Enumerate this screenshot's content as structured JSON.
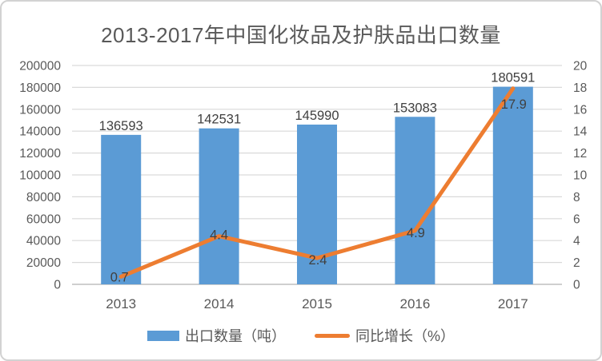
{
  "title": "2013-2017年中国化妆品及护肤品出口数量",
  "chart_data": {
    "type": "combo",
    "categories": [
      "2013",
      "2014",
      "2015",
      "2016",
      "2017"
    ],
    "series": [
      {
        "name": "出口数量（吨）",
        "type": "bar",
        "axis": "left",
        "color": "#5B9BD5",
        "values": [
          136593,
          142531,
          145990,
          153083,
          180591
        ]
      },
      {
        "name": "同比增长（%）",
        "type": "line",
        "axis": "right",
        "color": "#ED7D31",
        "values": [
          0.7,
          4.4,
          2.4,
          4.9,
          17.9
        ]
      }
    ],
    "left_axis": {
      "min": 0,
      "max": 200000,
      "step": 20000
    },
    "right_axis": {
      "min": 0,
      "max": 20,
      "step": 2
    },
    "grid": true,
    "grid_color": "#d9d9d9",
    "axis_line_color": "#cfcfcf",
    "text_color": "#595959",
    "label_color": "#404040",
    "legend_position": "bottom"
  }
}
